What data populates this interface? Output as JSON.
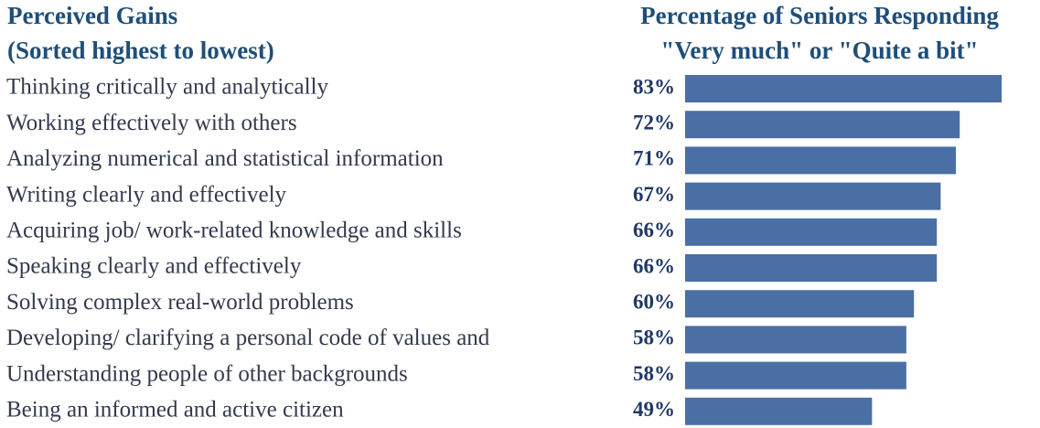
{
  "chart_data": {
    "type": "bar",
    "orientation": "horizontal",
    "title": "Perceived Gains",
    "subtitle": "(Sorted highest to lowest)",
    "value_title": "Percentage of Seniors Responding",
    "value_subtitle": "\"Very much\" or \"Quite a bit\"",
    "categories": [
      "Thinking critically and analytically",
      "Working effectively with others",
      "Analyzing numerical and statistical information",
      "Writing clearly and effectively",
      "Acquiring job/ work-related knowledge and skills",
      "Speaking clearly and effectively",
      "Solving complex real-world problems",
      "Developing/ clarifying a personal code of values and",
      "Understanding people of other backgrounds",
      "Being an informed and active citizen"
    ],
    "values": [
      83,
      72,
      71,
      67,
      66,
      66,
      60,
      58,
      58,
      49
    ],
    "value_labels": [
      "83%",
      "72%",
      "71%",
      "67%",
      "66%",
      "66%",
      "60%",
      "58%",
      "58%",
      "49%"
    ],
    "color": "#4a6fa5"
  }
}
